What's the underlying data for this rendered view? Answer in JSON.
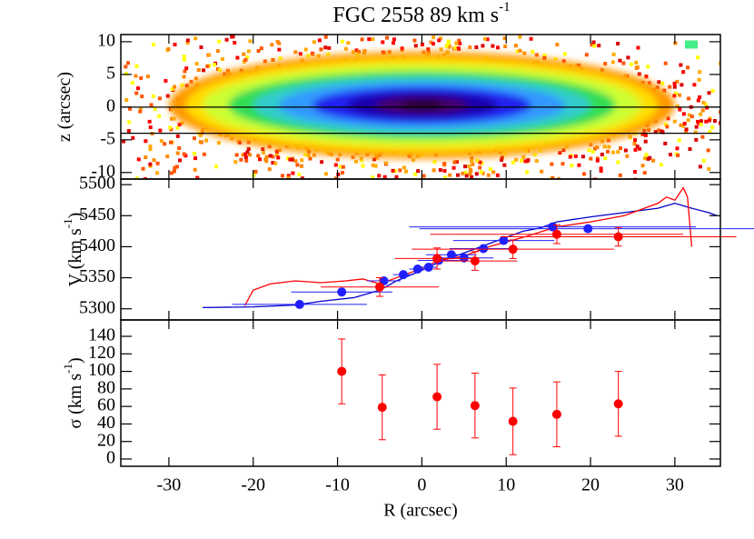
{
  "chart_data": [
    {
      "type": "image",
      "title": "FGC 2558 89 km s",
      "title_sup": "-1",
      "ylabel": "z (arcsec)",
      "xlim": [
        -35.7,
        35.4
      ],
      "ylim": [
        -11,
        11.1
      ],
      "yticks": [
        -10,
        -5,
        0,
        5,
        10
      ],
      "hlines": [
        0,
        -4
      ]
    },
    {
      "type": "scatter",
      "ylabel": "V (km s",
      "ylabel_sup": "-1",
      "ylabel_end": ")",
      "xlim": [
        -35.7,
        35.4
      ],
      "ylim": [
        5282,
        5509
      ],
      "yticks": [
        5300,
        5350,
        5400,
        5450,
        5500
      ],
      "lines": [
        {
          "color": "#0000cc",
          "x": [
            -26,
            -20,
            -15,
            -12,
            -8,
            -5,
            -3,
            0,
            2,
            4,
            6,
            8,
            10,
            12,
            14,
            16,
            20,
            24,
            28,
            30,
            32,
            34,
            35
          ],
          "values": [
            5302,
            5303,
            5306,
            5312,
            5318,
            5330,
            5345,
            5362,
            5375,
            5385,
            5395,
            5405,
            5415,
            5425,
            5430,
            5440,
            5448,
            5455,
            5462,
            5470,
            5462,
            5455,
            5450
          ]
        },
        {
          "color": "#ff0000",
          "x": [
            -21,
            -20,
            -18,
            -15,
            -12,
            -9,
            -7,
            -5,
            -3,
            0,
            2,
            5,
            8,
            12,
            16,
            20,
            24,
            28,
            29,
            30,
            31,
            31.5,
            32
          ],
          "values": [
            5305,
            5330,
            5340,
            5345,
            5342,
            5345,
            5348,
            5340,
            5350,
            5365,
            5378,
            5385,
            5400,
            5415,
            5432,
            5440,
            5450,
            5470,
            5480,
            5475,
            5495,
            5480,
            5400
          ]
        }
      ],
      "series": [
        {
          "color": "#2020ff",
          "x": [
            -14.5,
            -9.5,
            -4.5,
            -2.2,
            -0.5,
            0.8,
            2,
            3.5,
            5,
            7.3,
            9.7,
            15.5,
            19.7
          ],
          "values": [
            5307,
            5327,
            5345,
            5355,
            5364,
            5367,
            5378,
            5387,
            5382,
            5397,
            5410,
            5432,
            5429
          ],
          "xerr": [
            8,
            6,
            2,
            1.2,
            1,
            1,
            2.5,
            3,
            3.5,
            4,
            6,
            17,
            20
          ]
        },
        {
          "color": "#ff0000",
          "x": [
            -5,
            1.8,
            6.3,
            10.8,
            16,
            23.3
          ],
          "values": [
            5335,
            5381,
            5377,
            5396,
            5420,
            5416
          ],
          "xerr": [
            7,
            5,
            5,
            12,
            15,
            14
          ],
          "yerr": [
            15,
            17,
            15,
            15,
            15,
            15
          ]
        }
      ]
    },
    {
      "type": "scatter",
      "ylabel": "σ (km s",
      "ylabel_sup": "-1",
      "ylabel_end": ")",
      "xlabel": "R (arcsec)",
      "xlim": [
        -35.7,
        35.4
      ],
      "xticks": [
        -30,
        -20,
        -10,
        0,
        10,
        20,
        30
      ],
      "ylim": [
        -8.3,
        158.7
      ],
      "yticks": [
        0,
        20,
        40,
        60,
        80,
        100,
        120,
        140
      ],
      "series": [
        {
          "color": "#ff0000",
          "x": [
            -9.5,
            -4.7,
            1.8,
            6.3,
            10.8,
            16,
            23.3
          ],
          "values": [
            100,
            59,
            71,
            61,
            43,
            51,
            63
          ],
          "yerr": [
            37,
            37,
            37,
            37,
            38,
            37,
            37
          ]
        }
      ]
    }
  ]
}
